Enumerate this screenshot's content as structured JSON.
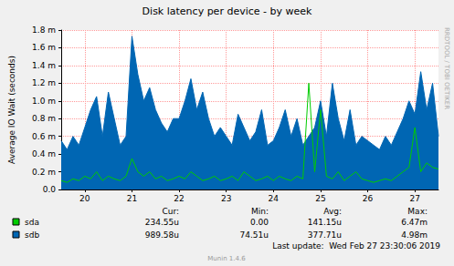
{
  "chart_data": {
    "type": "line",
    "title": "Disk latency per device - by week",
    "ylabel": "Average IO Wait (seconds)",
    "categories": [
      null,
      null,
      null,
      null,
      "20",
      null,
      null,
      null,
      null,
      null,
      null,
      null,
      "21",
      null,
      null,
      null,
      null,
      null,
      null,
      null,
      "22",
      null,
      null,
      null,
      null,
      null,
      null,
      null,
      "23",
      null,
      null,
      null,
      null,
      null,
      null,
      null,
      "24",
      null,
      null,
      null,
      null,
      null,
      null,
      null,
      "25",
      null,
      null,
      null,
      null,
      null,
      null,
      null,
      "26",
      null,
      null,
      null,
      null,
      null,
      null,
      null,
      "27",
      null,
      null,
      null,
      null
    ],
    "series": [
      {
        "name": "sdb",
        "type": "area",
        "color": "#0066B3",
        "stats": [
          "989.58u",
          "74.51u",
          "377.71u",
          "4.98m"
        ],
        "values": [
          0.00055,
          0.00045,
          0.0006,
          0.0005,
          0.0007,
          0.0009,
          0.00105,
          0.0006,
          0.0011,
          0.0008,
          0.0005,
          0.0006,
          0.00173,
          0.0013,
          0.001,
          0.00115,
          0.0009,
          0.00075,
          0.00065,
          0.0008,
          0.0008,
          0.001,
          0.00125,
          0.0009,
          0.0011,
          0.0008,
          0.0006,
          0.0007,
          0.0006,
          0.0005,
          0.00085,
          0.0007,
          0.00055,
          0.00065,
          0.0009,
          0.0005,
          0.00055,
          0.0007,
          0.0009,
          0.0006,
          0.0008,
          0.0005,
          0.0006,
          0.0007,
          0.001,
          0.0006,
          0.0012,
          0.0008,
          0.00055,
          0.0009,
          0.0005,
          0.0006,
          0.00055,
          0.0005,
          0.00045,
          0.0006,
          0.0005,
          0.00065,
          0.0008,
          0.001,
          0.00085,
          0.00133,
          0.0009,
          0.0012,
          0.0006
        ]
      },
      {
        "name": "sda",
        "type": "line",
        "color": "#00CC00",
        "stats": [
          "234.55u",
          "0.00",
          "141.15u",
          "6.47m"
        ],
        "values": [
          0.0001,
          8e-05,
          0.00012,
          0.0001,
          0.00015,
          0.00012,
          0.0002,
          0.0001,
          0.00015,
          0.00012,
          0.0001,
          0.00015,
          0.00035,
          0.0002,
          0.00015,
          0.0002,
          0.00012,
          0.00015,
          0.0001,
          0.00012,
          0.00015,
          0.00012,
          0.0002,
          0.00015,
          0.0001,
          0.00012,
          0.00015,
          0.0001,
          0.00012,
          0.00015,
          0.0001,
          0.0002,
          0.00015,
          0.0001,
          0.00012,
          0.00015,
          0.0001,
          0.00015,
          0.00012,
          0.0001,
          0.00015,
          0.00012,
          0.0012,
          0.0002,
          0.0009,
          0.00015,
          0.00012,
          0.0002,
          0.0001,
          0.00015,
          0.0002,
          0.00012,
          0.0001,
          8e-05,
          0.0001,
          0.00012,
          0.0001,
          0.00015,
          0.0002,
          0.00025,
          0.0007,
          0.0002,
          0.0003,
          0.00025,
          0.00023
        ]
      }
    ],
    "stats_columns": [
      "Cur:",
      "Min:",
      "Avg:",
      "Max:"
    ],
    "ylim": [
      0,
      0.0018
    ],
    "yticks": [
      {
        "value": 0,
        "label": "0.0"
      },
      {
        "value": 0.0002,
        "label": "0.2 m"
      },
      {
        "value": 0.0004,
        "label": "0.4 m"
      },
      {
        "value": 0.0006,
        "label": "0.6 m"
      },
      {
        "value": 0.0008,
        "label": "0.8 m"
      },
      {
        "value": 0.001,
        "label": "1.0 m"
      },
      {
        "value": 0.0012,
        "label": "1.2 m"
      },
      {
        "value": 0.0014,
        "label": "1.4 m"
      },
      {
        "value": 0.0016,
        "label": "1.6 m"
      },
      {
        "value": 0.0018,
        "label": "1.8 m"
      }
    ],
    "grid": true,
    "legend": "bottom",
    "last_update": "Last update:  Wed Feb 27 23:30:06 2019",
    "footer": "Munin 1.4.6",
    "side_text": "RRDTOOL / TOBI OETIKER"
  }
}
